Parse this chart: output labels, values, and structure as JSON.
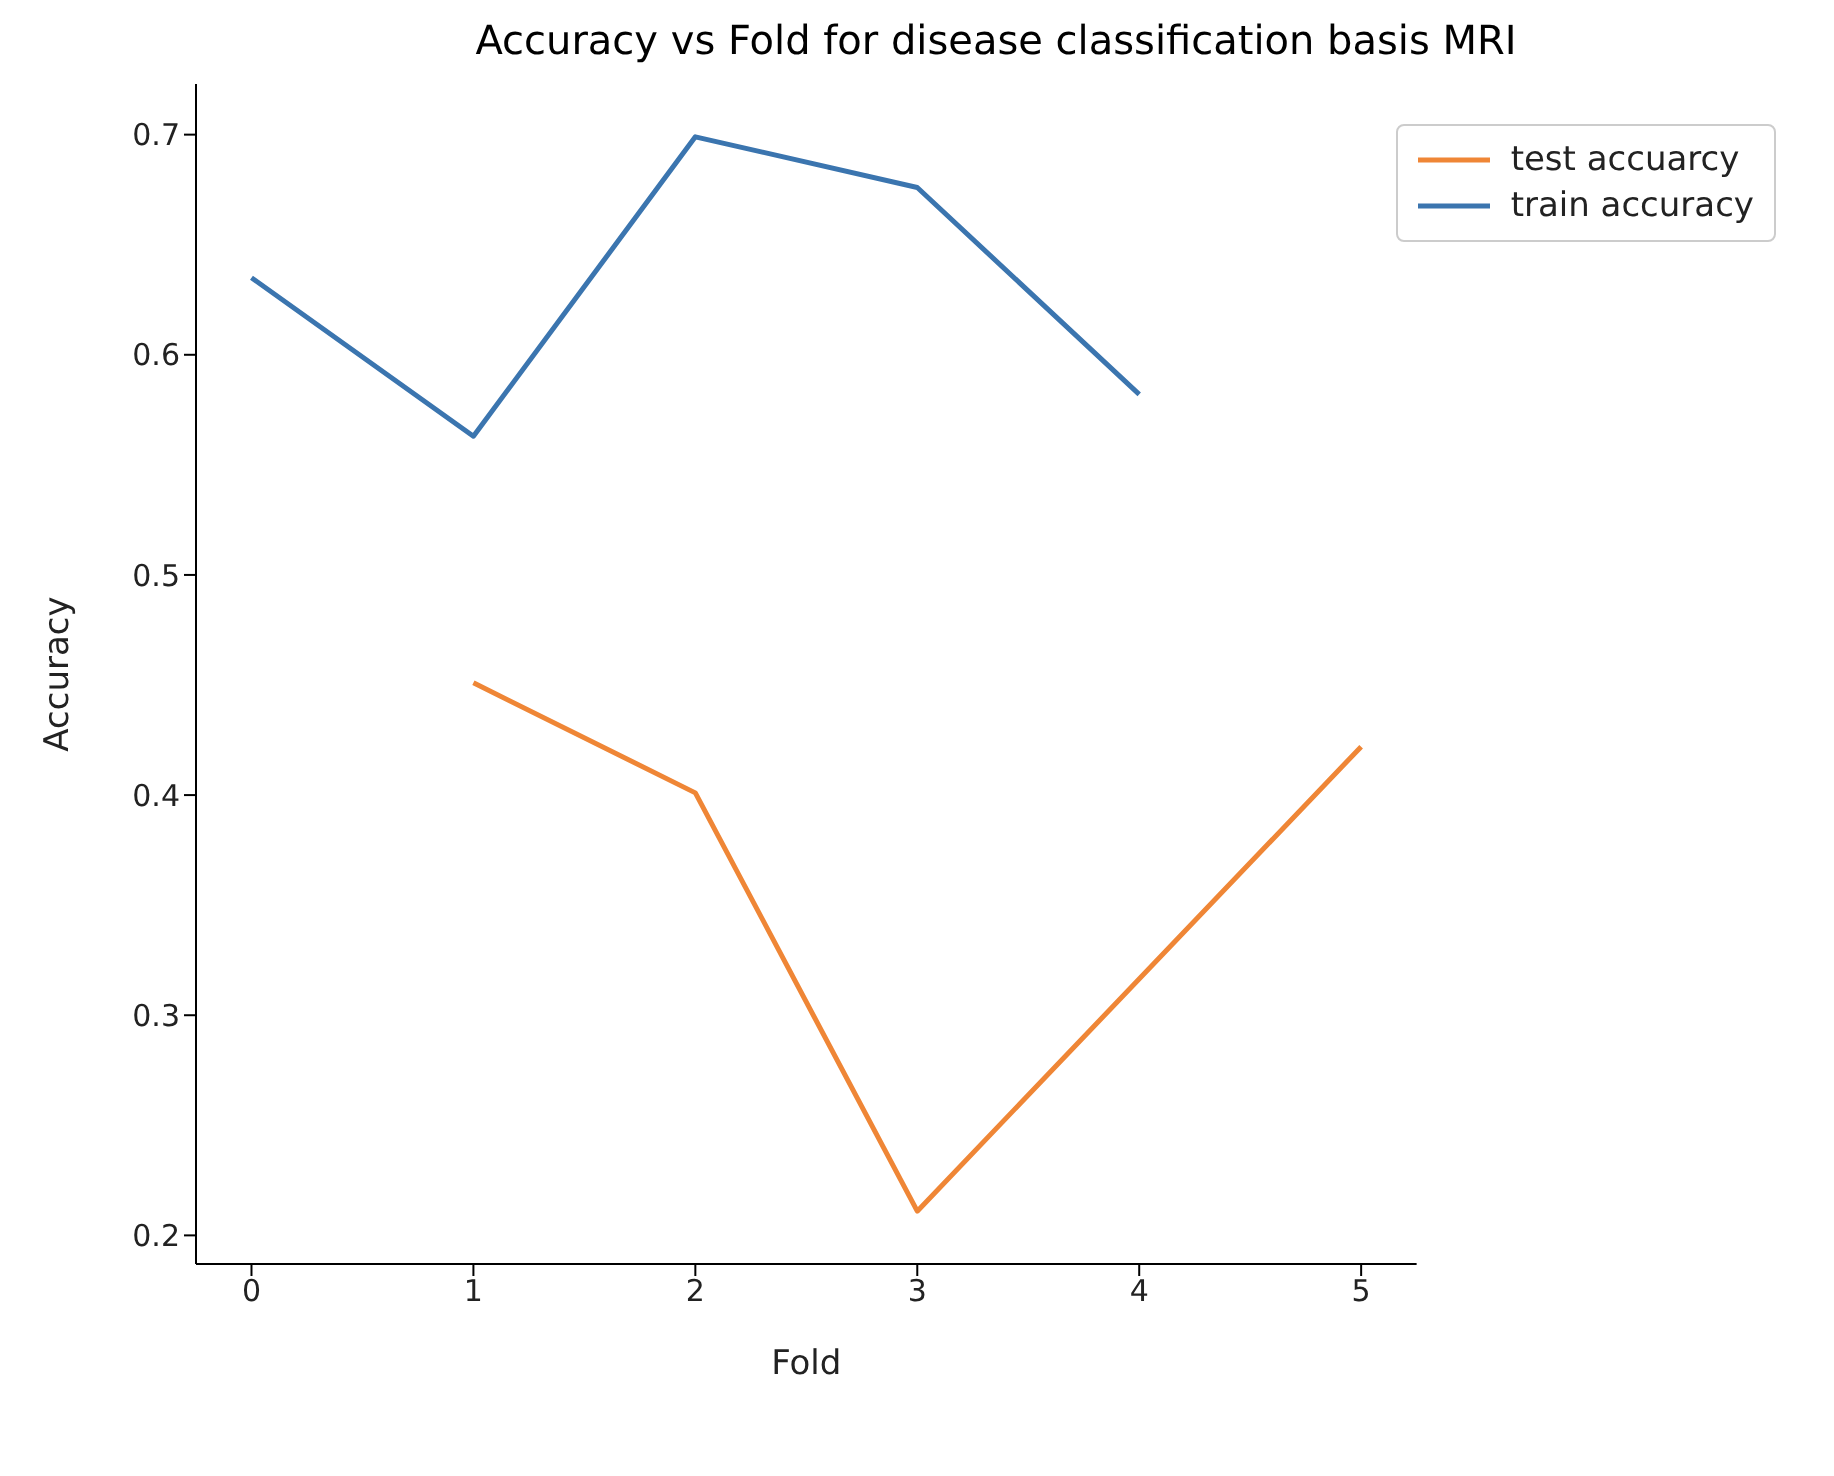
{
  "chart_data": {
    "type": "line",
    "title": "Accuracy vs Fold for disease classification basis MRI",
    "xlabel": "Fold",
    "ylabel": "Accuracy",
    "series": [
      {
        "name": "train accuracy",
        "color": "#3b75af",
        "x": [
          0,
          1,
          2,
          3,
          4
        ],
        "values": [
          0.635,
          0.563,
          0.699,
          0.676,
          0.582
        ]
      },
      {
        "name": "test accuarcy",
        "color": "#ef8636",
        "x": [
          1,
          2,
          3,
          5
        ],
        "values": [
          0.451,
          0.401,
          0.211,
          0.422
        ]
      }
    ],
    "xlim": [
      -0.25,
      5.25
    ],
    "xticks": [
      0,
      1,
      2,
      3,
      4,
      5
    ],
    "ylim": [
      0.187,
      0.723
    ],
    "yticks": [
      0.2,
      0.3,
      0.4,
      0.5,
      0.6,
      0.7
    ],
    "grid": false,
    "legend": "top right",
    "marker": "none",
    "line_style": "solid"
  }
}
